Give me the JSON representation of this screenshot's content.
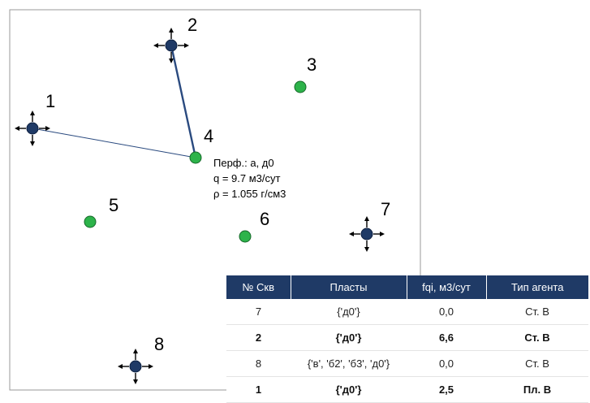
{
  "wells": [
    {
      "id": "1",
      "type": "injector"
    },
    {
      "id": "2",
      "type": "injector"
    },
    {
      "id": "3",
      "type": "producer"
    },
    {
      "id": "4",
      "type": "producer"
    },
    {
      "id": "5",
      "type": "producer"
    },
    {
      "id": "6",
      "type": "producer"
    },
    {
      "id": "7",
      "type": "injector"
    },
    {
      "id": "8",
      "type": "injector"
    }
  ],
  "connections": [
    {
      "from": "2",
      "to": "4",
      "style": "thick"
    },
    {
      "from": "1",
      "to": "4",
      "style": "thin"
    }
  ],
  "info_box": {
    "well": "4",
    "line1": "Перф.: а, д0",
    "line2": "q = 9.7 м3/сут",
    "line3": "ρ = 1.055 г/см3"
  },
  "table": {
    "headers": [
      "№ Скв",
      "Пласты",
      "fqi, м3/сут",
      "Тип агента"
    ],
    "rows": [
      {
        "cells": [
          "7",
          "{'д0'}",
          "0,0",
          "Ст. В"
        ],
        "bold": false
      },
      {
        "cells": [
          "2",
          "{'д0'}",
          "6,6",
          "Ст. В"
        ],
        "bold": true
      },
      {
        "cells": [
          "8",
          "{'в', 'б2', 'б3', 'д0'}",
          "0,0",
          "Ст. В"
        ],
        "bold": false
      },
      {
        "cells": [
          "1",
          "{'д0'}",
          "2,5",
          "Пл. В"
        ],
        "bold": true
      }
    ]
  },
  "colors": {
    "injector": "#1f3a66",
    "producer": "#2db34a",
    "connection": "#2a4a7f",
    "header_bg": "#1f3a66"
  }
}
